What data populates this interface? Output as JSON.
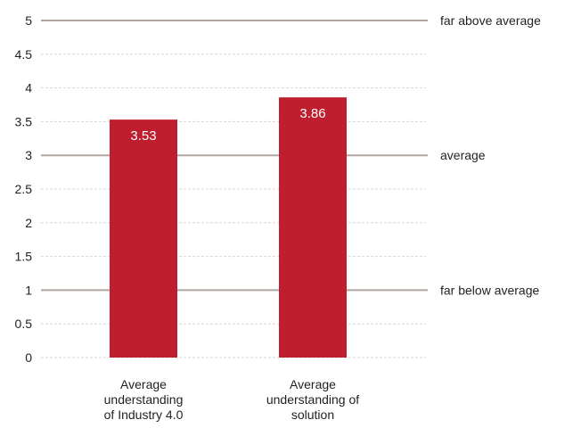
{
  "chart_data": {
    "type": "bar",
    "title": "",
    "xlabel": "",
    "ylabel": "",
    "categories": [
      [
        "Average",
        "understanding",
        "of Industry 4.0"
      ],
      [
        "Average",
        "understanding of",
        "solution"
      ]
    ],
    "values": [
      3.53,
      3.86
    ],
    "value_labels": [
      "3.53",
      "3.86"
    ],
    "ylim": [
      0,
      5
    ],
    "yticks": [
      "0",
      "0.5",
      "1",
      "1.5",
      "2",
      "2.5",
      "3",
      "3.5",
      "4",
      "4.5",
      "5"
    ],
    "ytick_values": [
      0,
      0.5,
      1,
      1.5,
      2,
      2.5,
      3,
      3.5,
      4,
      4.5,
      5
    ],
    "reference_lines": [
      {
        "value": 5,
        "label": "far above average"
      },
      {
        "value": 3,
        "label": "average"
      },
      {
        "value": 1,
        "label": "far below average"
      }
    ],
    "grid": true,
    "legend": "none",
    "colors": {
      "bar": "#be1e2d",
      "reference_line": "#b2a59f",
      "grid": "#d6d6d6",
      "text": "#231f20",
      "bar_value_text": "#ffffff"
    }
  }
}
